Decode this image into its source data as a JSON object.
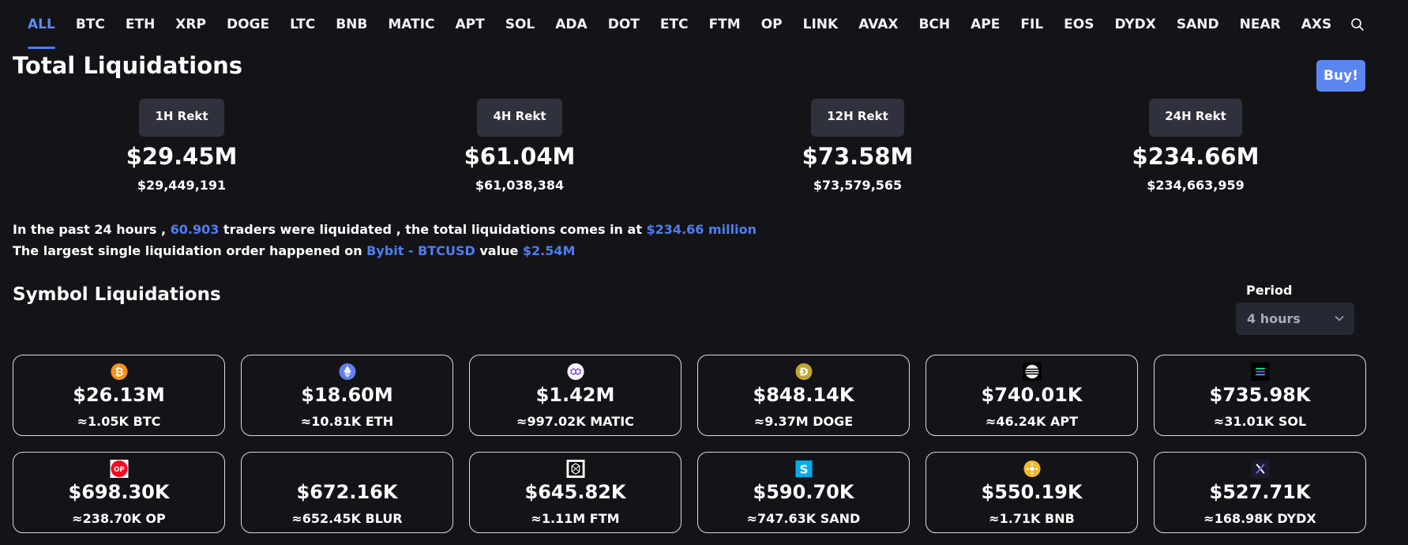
{
  "nav": {
    "tabs": [
      "ALL",
      "BTC",
      "ETH",
      "XRP",
      "DOGE",
      "LTC",
      "BNB",
      "MATIC",
      "APT",
      "SOL",
      "ADA",
      "DOT",
      "ETC",
      "FTM",
      "OP",
      "LINK",
      "AVAX",
      "BCH",
      "APE",
      "FIL",
      "EOS",
      "DYDX",
      "SAND",
      "NEAR",
      "AXS"
    ],
    "active_tab": "ALL"
  },
  "total": {
    "title": "Total Liquidations",
    "buy_label": "Buy!",
    "blocks": [
      {
        "label": "1H Rekt",
        "big": "$29.45M",
        "small": "$29,449,191"
      },
      {
        "label": "4H Rekt",
        "big": "$61.04M",
        "small": "$61,038,384"
      },
      {
        "label": "12H Rekt",
        "big": "$73.58M",
        "small": "$73,579,565"
      },
      {
        "label": "24H Rekt",
        "big": "$234.66M",
        "small": "$234,663,959"
      }
    ]
  },
  "summary": {
    "line1_a": "In the past 24 hours , ",
    "traders": "60.903",
    "line1_b": " traders were liquidated , the total liquidations comes in at ",
    "total_amount": "$234.66 million",
    "line2_a": "The largest single liquidation order happened on ",
    "exchange": "Bybit - BTCUSD",
    "line2_b": " value ",
    "largest_value": "$2.54M"
  },
  "symbols": {
    "title": "Symbol Liquidations",
    "period_label": "Period",
    "period_value": "4 hours",
    "cards": [
      {
        "icon": "btc-icon",
        "value": "$26.13M",
        "amount": "≈1.05K BTC"
      },
      {
        "icon": "eth-icon",
        "value": "$18.60M",
        "amount": "≈10.81K ETH"
      },
      {
        "icon": "matic-icon",
        "value": "$1.42M",
        "amount": "≈997.02K MATIC"
      },
      {
        "icon": "doge-icon",
        "value": "$848.14K",
        "amount": "≈9.37M DOGE"
      },
      {
        "icon": "apt-icon",
        "value": "$740.01K",
        "amount": "≈46.24K APT"
      },
      {
        "icon": "sol-icon",
        "value": "$735.98K",
        "amount": "≈31.01K SOL"
      },
      {
        "icon": "op-icon",
        "value": "$698.30K",
        "amount": "≈238.70K OP"
      },
      {
        "icon": "",
        "value": "$672.16K",
        "amount": "≈652.45K BLUR"
      },
      {
        "icon": "ftm-icon",
        "value": "$645.82K",
        "amount": "≈1.11M FTM"
      },
      {
        "icon": "sand-icon",
        "value": "$590.70K",
        "amount": "≈747.63K SAND"
      },
      {
        "icon": "bnb-icon",
        "value": "$550.19K",
        "amount": "≈1.71K BNB"
      },
      {
        "icon": "dydx-icon",
        "value": "$527.71K",
        "amount": "≈168.98K DYDX"
      }
    ]
  },
  "colors": {
    "accent": "#4d7ef0",
    "background": "#141418",
    "button": "#5b86ef"
  }
}
